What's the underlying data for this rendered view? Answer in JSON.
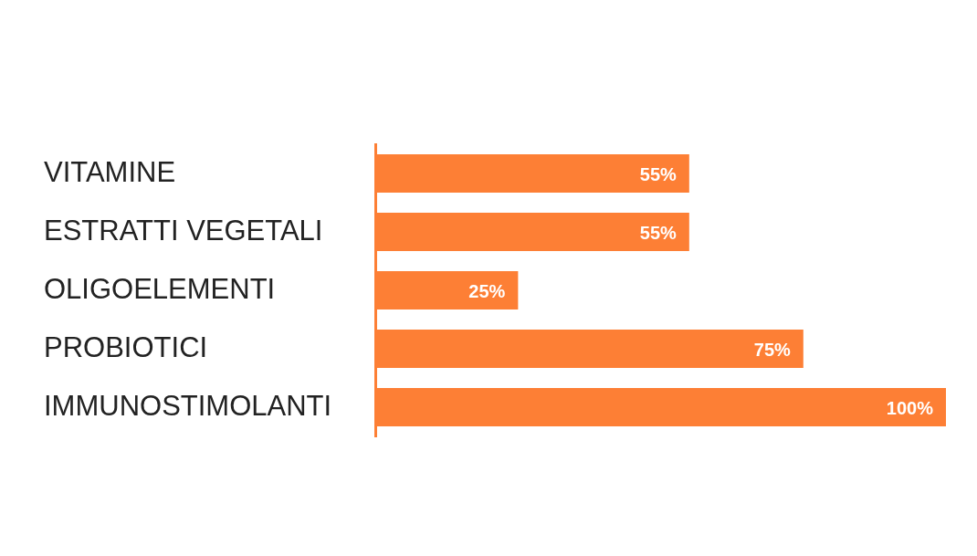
{
  "chart_data": {
    "type": "bar",
    "orientation": "horizontal",
    "categories": [
      "VITAMINE",
      "ESTRATTI VEGETALI",
      "OLIGOELEMENTI",
      "PROBIOTICI",
      "IMMUNOSTIMOLANTI"
    ],
    "values": [
      55,
      55,
      25,
      75,
      100
    ],
    "color": "#fd7f35",
    "value_labels": [
      "55%",
      "55%",
      "25%",
      "75%",
      "100%"
    ],
    "legend": false,
    "tick_labels": "y"
  }
}
